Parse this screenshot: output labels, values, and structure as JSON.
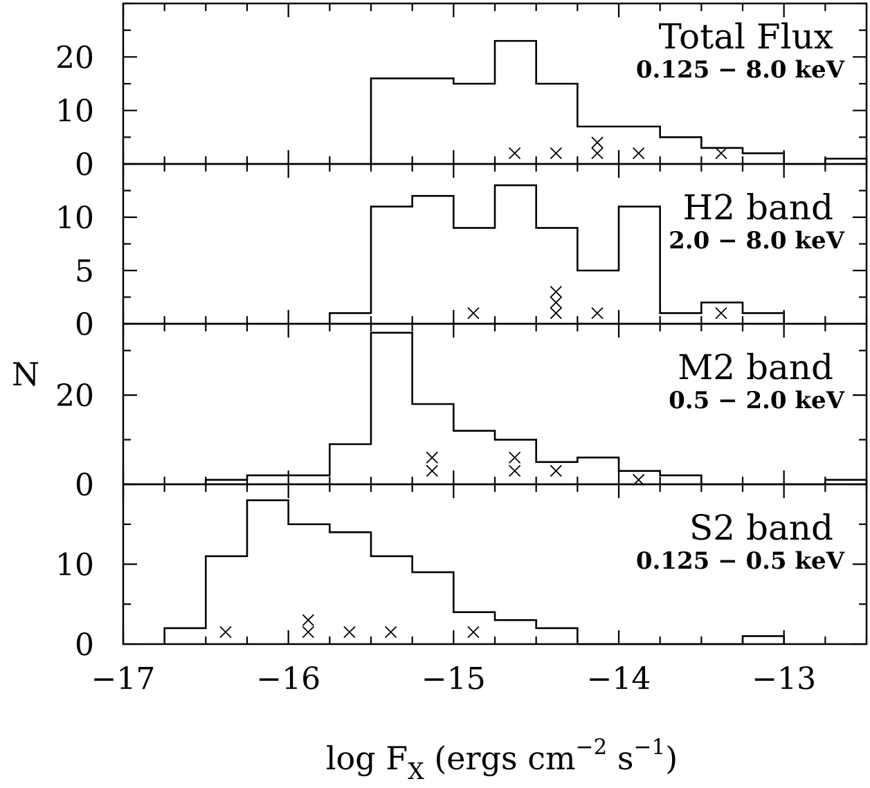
{
  "chart_data": [
    {
      "type": "histogram",
      "panel_title": "Total Flux",
      "panel_subtitle": "0.125 − 8.0 keV",
      "bin_edges": [
        -15.5,
        -15.25,
        -15.0,
        -14.75,
        -14.5,
        -14.25,
        -14.0,
        -13.75,
        -13.5,
        -13.25,
        -13.0,
        -12.75,
        -12.5
      ],
      "counts": [
        16,
        16,
        15,
        23,
        15,
        7,
        7,
        5,
        3,
        2,
        0,
        1
      ],
      "marker_points": [
        {
          "x": -14.63,
          "y": 2
        },
        {
          "x": -14.38,
          "y": 2
        },
        {
          "x": -14.13,
          "y": 2
        },
        {
          "x": -14.13,
          "y": 4
        },
        {
          "x": -13.88,
          "y": 2
        },
        {
          "x": -13.38,
          "y": 2
        }
      ],
      "ylim": [
        0,
        30
      ],
      "yticks": [
        0,
        10,
        20
      ],
      "ytick_labels": [
        "0",
        "10",
        "20"
      ]
    },
    {
      "type": "histogram",
      "panel_title": "H2 band",
      "panel_subtitle": "2.0 − 8.0 keV",
      "bin_edges": [
        -15.75,
        -15.5,
        -15.25,
        -15.0,
        -14.75,
        -14.5,
        -14.25,
        -14.0,
        -13.75,
        -13.5,
        -13.25,
        -13.0
      ],
      "counts": [
        1,
        11,
        12,
        9,
        13,
        9,
        5,
        11,
        1,
        2,
        1
      ],
      "marker_points": [
        {
          "x": -14.88,
          "y": 1
        },
        {
          "x": -14.38,
          "y": 1
        },
        {
          "x": -14.38,
          "y": 2
        },
        {
          "x": -14.38,
          "y": 3
        },
        {
          "x": -14.13,
          "y": 1
        },
        {
          "x": -13.38,
          "y": 1
        }
      ],
      "ylim": [
        0,
        15
      ],
      "yticks": [
        0,
        5,
        10
      ],
      "ytick_labels": [
        "0",
        "5",
        "10"
      ]
    },
    {
      "type": "histogram",
      "panel_title": "M2 band",
      "panel_subtitle": "0.5 − 2.0 keV",
      "bin_edges": [
        -16.5,
        -16.25,
        -16.0,
        -15.75,
        -15.5,
        -15.25,
        -15.0,
        -14.75,
        -14.5,
        -14.25,
        -14.0,
        -13.75,
        -13.5,
        -13.25,
        -13.0,
        -12.75,
        -12.5
      ],
      "counts": [
        1,
        2,
        2,
        9,
        34,
        18,
        12,
        10,
        5,
        6,
        3,
        2,
        0,
        0,
        0,
        1
      ],
      "marker_points": [
        {
          "x": -15.13,
          "y": 3
        },
        {
          "x": -15.13,
          "y": 6
        },
        {
          "x": -14.63,
          "y": 3
        },
        {
          "x": -14.63,
          "y": 6
        },
        {
          "x": -14.38,
          "y": 3
        },
        {
          "x": -13.88,
          "y": 1
        }
      ],
      "ylim": [
        0,
        36
      ],
      "yticks": [
        0,
        20
      ],
      "ytick_labels": [
        "0",
        "20"
      ]
    },
    {
      "type": "histogram",
      "panel_title": "S2 band",
      "panel_subtitle": "0.125 − 0.5 keV",
      "bin_edges": [
        -16.75,
        -16.5,
        -16.25,
        -16.0,
        -15.75,
        -15.5,
        -15.25,
        -15.0,
        -14.75,
        -14.5,
        -14.25,
        -14.0,
        -13.75,
        -13.5,
        -13.25,
        -13.0
      ],
      "counts": [
        2,
        11,
        18,
        15,
        14,
        11,
        9,
        4,
        3,
        2,
        0,
        0,
        0,
        0,
        1
      ],
      "marker_points": [
        {
          "x": -16.38,
          "y": 1.5
        },
        {
          "x": -15.88,
          "y": 1.5
        },
        {
          "x": -15.88,
          "y": 3
        },
        {
          "x": -15.63,
          "y": 1.5
        },
        {
          "x": -15.38,
          "y": 1.5
        },
        {
          "x": -14.88,
          "y": 1.5
        }
      ],
      "ylim": [
        0,
        20
      ],
      "yticks": [
        0,
        10
      ],
      "ytick_labels": [
        "0",
        "10"
      ]
    }
  ],
  "shared_axes": {
    "xlim": [
      -17,
      -12.5
    ],
    "x_major_ticks": [
      -17,
      -16,
      -15,
      -14,
      -13
    ],
    "x_tick_labels": [
      "−17",
      "−16",
      "−15",
      "−14",
      "−13"
    ],
    "x_minor_step": 0.25,
    "xlabel_main": "log F",
    "xlabel_subscript": "X",
    "xlabel_units_open": "(ergs cm",
    "xlabel_exp1": "−2",
    "xlabel_units_mid": "s",
    "xlabel_exp2": "−1",
    "xlabel_close": ")",
    "ylabel": "N"
  }
}
